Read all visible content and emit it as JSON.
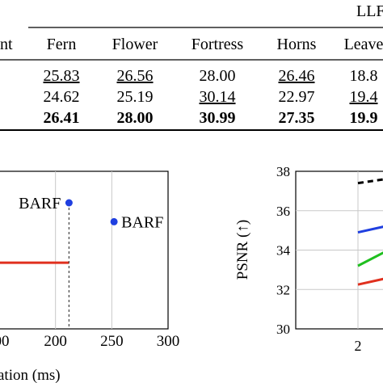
{
  "table": {
    "group_header": "LLF",
    "row_header_fragment": "nt",
    "columns": [
      "Fern",
      "Flower",
      "Fortress",
      "Horns",
      "Leave"
    ],
    "rows": [
      {
        "values": [
          "25.83",
          "26.56",
          "28.00",
          "26.46",
          "18.8"
        ],
        "style": [
          "underline",
          "underline",
          "normal",
          "underline",
          "normal"
        ]
      },
      {
        "values": [
          "24.62",
          "25.19",
          "30.14",
          "22.97",
          "19.4"
        ],
        "style": [
          "normal",
          "normal",
          "underline",
          "normal",
          "underline"
        ]
      },
      {
        "values": [
          "26.41",
          "28.00",
          "30.99",
          "27.35",
          "19.9"
        ],
        "style": [
          "bold",
          "bold",
          "bold",
          "bold",
          "bold"
        ]
      }
    ]
  },
  "chart_data": [
    {
      "type": "scatter",
      "xlabel": "ation (ms)",
      "x_ticks": [
        "00",
        "200",
        "250",
        "300"
      ],
      "x_tick_values": [
        150,
        200,
        250,
        300
      ],
      "xlim": [
        150,
        300
      ],
      "points": [
        {
          "label": "BARF",
          "x": 212,
          "y": 0.8
        },
        {
          "label": "BARF",
          "x": 252,
          "y": 0.68
        }
      ],
      "red_segment": {
        "x_start": 150,
        "x_end": 212,
        "y": 0.42
      },
      "dashed_drop_x": 212,
      "colors": {
        "points": "#1f3fe0",
        "segment": "#e0301e"
      }
    },
    {
      "type": "line",
      "ylabel": "PSNR (↑)",
      "yticks": [
        "38",
        "36",
        "34",
        "32",
        "30"
      ],
      "ylim": [
        30,
        38
      ],
      "x_ticks": [
        "2"
      ],
      "xlim": [
        1.3,
        2.3
      ],
      "series": [
        {
          "color": "#000000",
          "style": "dashed",
          "x": [
            2.0,
            2.3
          ],
          "y": [
            37.4,
            37.6
          ]
        },
        {
          "color": "#1f3fe0",
          "style": "solid",
          "x": [
            2.0,
            2.3
          ],
          "y": [
            34.9,
            35.2
          ]
        },
        {
          "color": "#1fbf1f",
          "style": "solid",
          "x": [
            2.0,
            2.3
          ],
          "y": [
            33.2,
            33.9
          ]
        },
        {
          "color": "#e0301e",
          "style": "solid",
          "x": [
            2.0,
            2.3
          ],
          "y": [
            32.25,
            32.55
          ]
        }
      ]
    }
  ]
}
